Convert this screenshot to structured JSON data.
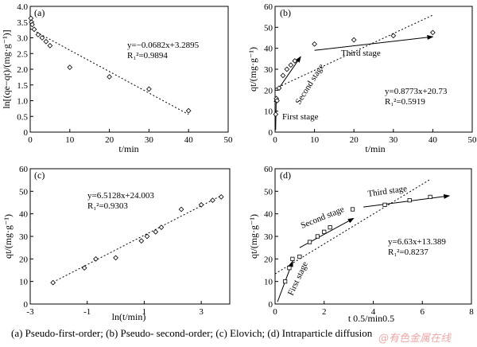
{
  "caption": "(a) Pseudo-first-order; (b) Pseudo- second-order; (c) Elovich; (d) Intraparticle diffusion",
  "watermark": "@有色金属在线",
  "chart_data": [
    {
      "type": "scatter",
      "panel_label": "(a)",
      "xlabel": "t/min",
      "ylabel": "ln[(qe−qt)/(mg·g⁻¹)]",
      "xlim": [
        0,
        50
      ],
      "ylim": [
        0,
        4.0
      ],
      "xticks": [
        0,
        10,
        20,
        30,
        40,
        50
      ],
      "yticks": [
        0,
        0.5,
        1.0,
        1.5,
        2.0,
        2.5,
        3.0,
        3.5,
        4.0
      ],
      "ytick_labels": [
        "0",
        "0.5",
        "1.0",
        "1.5",
        "2.0",
        "2.5",
        "3.0",
        "3.5",
        "4.0"
      ],
      "points": [
        [
          0.17,
          3.62
        ],
        [
          0.33,
          3.5
        ],
        [
          0.5,
          3.42
        ],
        [
          1,
          3.27
        ],
        [
          2,
          3.1
        ],
        [
          3,
          3.0
        ],
        [
          4,
          2.88
        ],
        [
          5,
          2.75
        ],
        [
          10,
          2.06
        ],
        [
          20,
          1.76
        ],
        [
          30,
          1.37
        ],
        [
          40,
          0.68
        ]
      ],
      "fit": {
        "x": [
          0,
          40
        ],
        "y": [
          3.2895,
          0.5615
        ]
      },
      "equation": "y=−0.0682x+3.2895",
      "r2": "R₁²=0.9894"
    },
    {
      "type": "scatter",
      "panel_label": "(b)",
      "xlabel": "t/min",
      "ylabel": "qt/(mg·g⁻¹)",
      "xlim": [
        0,
        50
      ],
      "ylim": [
        0,
        60
      ],
      "xticks": [
        0,
        10,
        20,
        30,
        40,
        50
      ],
      "yticks": [
        0,
        10,
        20,
        30,
        40,
        50,
        60
      ],
      "points": [
        [
          0.17,
          8.5
        ],
        [
          0.33,
          16
        ],
        [
          0.5,
          15
        ],
        [
          1,
          21
        ],
        [
          2,
          27
        ],
        [
          3,
          30
        ],
        [
          4,
          32
        ],
        [
          5,
          34
        ],
        [
          10,
          42
        ],
        [
          20,
          44
        ],
        [
          30,
          46
        ],
        [
          40,
          47.5
        ]
      ],
      "fit": {
        "x": [
          0,
          40
        ],
        "y": [
          20.73,
          55.82
        ]
      },
      "stages": [
        {
          "label": "First stage",
          "from": [
            0.15,
            1
          ],
          "to": [
            0.3,
            17
          ]
        },
        {
          "label": "Second stage",
          "from": [
            1,
            21
          ],
          "to": [
            6.5,
            36
          ]
        },
        {
          "label": "Third stage",
          "from": [
            10,
            39
          ],
          "to": [
            40,
            45.5
          ]
        }
      ],
      "equation": "y=0.8773x+20.73",
      "r2": "R₁²=0.5919"
    },
    {
      "type": "scatter",
      "panel_label": "(c)",
      "xlabel": "ln(t/min)",
      "ylabel": "qt/(mg·g⁻¹)",
      "xlim": [
        -3,
        4
      ],
      "ylim": [
        0,
        60
      ],
      "xticks": [
        -3,
        -1,
        1,
        3
      ],
      "yticks": [
        0,
        10,
        20,
        30,
        40,
        50,
        60
      ],
      "points": [
        [
          -2.2,
          9.5
        ],
        [
          -1.1,
          16
        ],
        [
          -0.7,
          20
        ],
        [
          0,
          20.5
        ],
        [
          0.9,
          28
        ],
        [
          1.1,
          30
        ],
        [
          1.4,
          32
        ],
        [
          1.6,
          34
        ],
        [
          2.3,
          42
        ],
        [
          3.0,
          44
        ],
        [
          3.4,
          46
        ],
        [
          3.7,
          47.5
        ]
      ],
      "fit": {
        "x": [
          -2.2,
          3.7
        ],
        "y": [
          9.68,
          48.09
        ]
      },
      "equation": "y=6.5128x+24.003",
      "r2": "R₁²=0.9303"
    },
    {
      "type": "scatter",
      "panel_label": "(d)",
      "xlabel": "t 0.5/min0.5",
      "ylabel": "qt/(mg·g⁻¹)",
      "xlim": [
        0,
        8
      ],
      "ylim": [
        0,
        60
      ],
      "xticks": [
        0,
        2,
        4,
        6,
        8
      ],
      "yticks": [
        0,
        10,
        20,
        30,
        40,
        50,
        60
      ],
      "points": [
        [
          0.41,
          10
        ],
        [
          0.58,
          16
        ],
        [
          0.71,
          20
        ],
        [
          1,
          21
        ],
        [
          1.41,
          27.5
        ],
        [
          1.73,
          30
        ],
        [
          2,
          32
        ],
        [
          2.24,
          34
        ],
        [
          3.16,
          42
        ],
        [
          4.47,
          44
        ],
        [
          5.48,
          46
        ],
        [
          6.32,
          47.5
        ]
      ],
      "fit": {
        "x": [
          0,
          6.32
        ],
        "y": [
          13.389,
          55.29
        ]
      },
      "stages": [
        {
          "label": "First stage",
          "from": [
            0.1,
            1
          ],
          "to": [
            0.72,
            19
          ]
        },
        {
          "label": "Second stage",
          "from": [
            1,
            25
          ],
          "to": [
            3.2,
            38
          ]
        },
        {
          "label": "Third stage",
          "from": [
            3.6,
            43
          ],
          "to": [
            7.1,
            48
          ]
        }
      ],
      "equation": "y=6.63x+13.389",
      "r2": "R₁²=0.8237"
    }
  ]
}
